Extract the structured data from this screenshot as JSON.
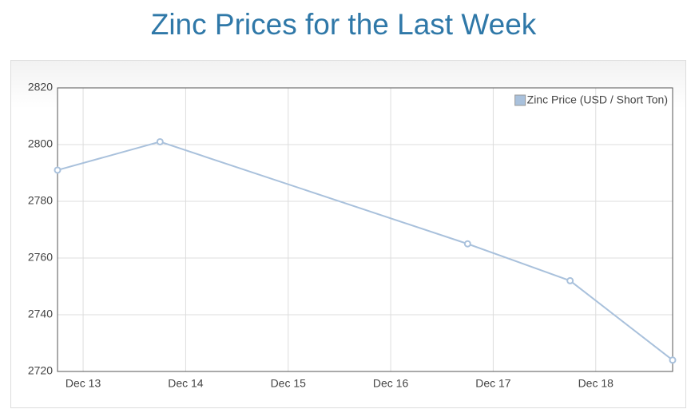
{
  "chart_data": {
    "type": "line",
    "title": "Zinc Prices for the Last Week",
    "x": [
      12.75,
      13.75,
      16.75,
      17.75,
      18.75
    ],
    "series": [
      {
        "name": "Zinc Price (USD / Short Ton)",
        "color": "#a9c1dc",
        "values": [
          2791,
          2801,
          2765,
          2752,
          2724
        ]
      }
    ],
    "xlim": [
      12.75,
      18.75
    ],
    "xticks": [
      {
        "value": 13,
        "label": "Dec 13"
      },
      {
        "value": 14,
        "label": "Dec 14"
      },
      {
        "value": 15,
        "label": "Dec 15"
      },
      {
        "value": 16,
        "label": "Dec 16"
      },
      {
        "value": 17,
        "label": "Dec 17"
      },
      {
        "value": 18,
        "label": "Dec 18"
      }
    ],
    "ylim": [
      2720,
      2820
    ],
    "yticks": [
      2720,
      2740,
      2760,
      2780,
      2800,
      2820
    ],
    "grid": true,
    "legend": "top-right"
  }
}
